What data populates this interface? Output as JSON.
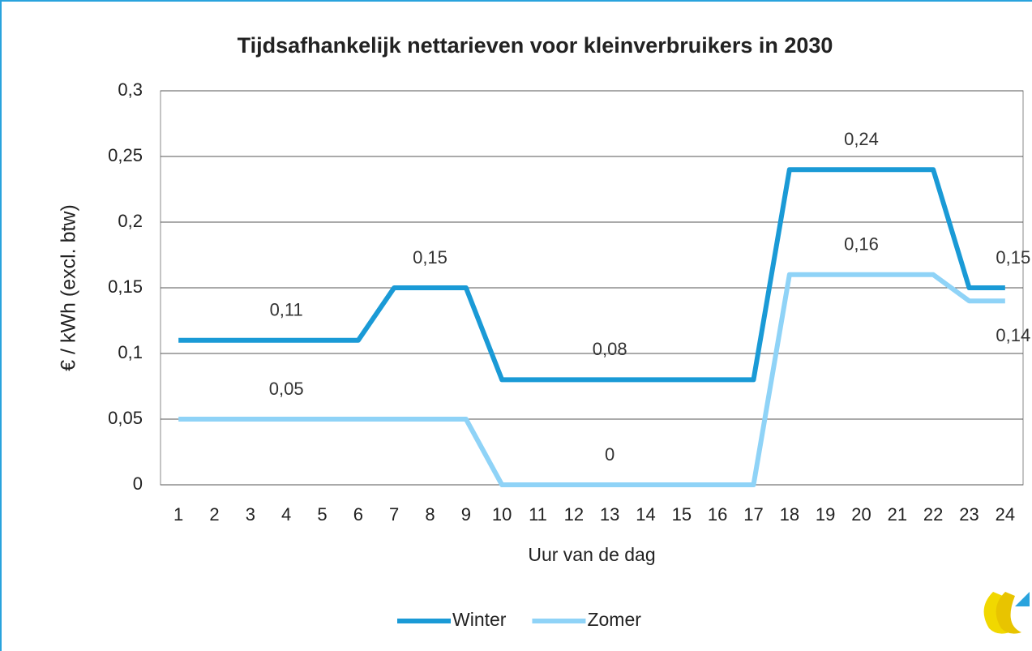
{
  "chart_data": {
    "type": "line",
    "title": "Tijdsafhankelijk nettarieven voor kleinverbruikers in 2030",
    "x_label": "Uur van de dag",
    "y_label": "€ / kWh (excl. btw)",
    "categories": [
      "1",
      "2",
      "3",
      "4",
      "5",
      "6",
      "7",
      "8",
      "9",
      "10",
      "11",
      "12",
      "13",
      "14",
      "15",
      "16",
      "17",
      "18",
      "19",
      "20",
      "21",
      "22",
      "23",
      "24"
    ],
    "series": [
      {
        "name": "Winter",
        "color": "#1a9ad6",
        "values": [
          0.11,
          0.11,
          0.11,
          0.11,
          0.11,
          0.11,
          0.15,
          0.15,
          0.15,
          0.08,
          0.08,
          0.08,
          0.08,
          0.08,
          0.08,
          0.08,
          0.08,
          0.24,
          0.24,
          0.24,
          0.24,
          0.24,
          0.15,
          0.15
        ],
        "value_labels": [
          null,
          null,
          null,
          "0,11",
          null,
          null,
          null,
          "0,15",
          null,
          null,
          null,
          null,
          "0,08",
          null,
          null,
          null,
          null,
          null,
          null,
          "0,24",
          null,
          null,
          null,
          "0,15"
        ]
      },
      {
        "name": "Zomer",
        "color": "#8fd3f7",
        "values": [
          0.05,
          0.05,
          0.05,
          0.05,
          0.05,
          0.05,
          0.05,
          0.05,
          0.05,
          0,
          0,
          0,
          0,
          0,
          0,
          0,
          0,
          0.16,
          0.16,
          0.16,
          0.16,
          0.16,
          0.14,
          0.14
        ],
        "value_labels": [
          null,
          null,
          null,
          "0,05",
          null,
          null,
          null,
          null,
          null,
          null,
          null,
          null,
          "0",
          null,
          null,
          null,
          null,
          null,
          null,
          "0,16",
          null,
          null,
          null,
          "0,14"
        ]
      }
    ],
    "ylim": [
      0,
      0.3
    ],
    "yticks": [
      0,
      {
        "value": 0.05,
        "label": "0,05"
      },
      {
        "value": 0.1,
        "label": "0,1"
      },
      {
        "value": 0.15,
        "label": "0,15"
      },
      {
        "value": 0.2,
        "label": "0,2"
      },
      {
        "value": 0.25,
        "label": "0,25"
      },
      {
        "value": 0.3,
        "label": "0,3"
      }
    ],
    "grid": true,
    "legend": "bottom"
  }
}
